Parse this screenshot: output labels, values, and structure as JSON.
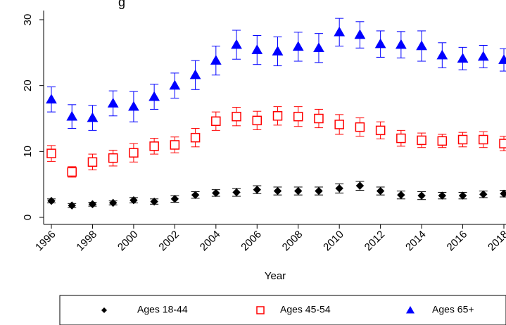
{
  "chart_data": {
    "type": "scatter",
    "title_fragment": "g",
    "xlabel": "Year",
    "ylabel": "",
    "x": [
      1996,
      1997,
      1998,
      1999,
      2000,
      2001,
      2002,
      2003,
      2004,
      2005,
      2006,
      2007,
      2008,
      2009,
      2010,
      2011,
      2012,
      2013,
      2014,
      2015,
      2016,
      2017,
      2018
    ],
    "xticks": [
      "1996",
      "1998",
      "2000",
      "2002",
      "2004",
      "2006",
      "2008",
      "2010",
      "2012",
      "2014",
      "2016",
      "2018"
    ],
    "yticks": [
      "0",
      "10",
      "20",
      "30"
    ],
    "xlim": [
      1995.5,
      2018.2
    ],
    "ylim": [
      -1,
      31
    ],
    "grid": false,
    "legend_position": "bottom",
    "series": [
      {
        "name": "Ages 18-44",
        "marker": "diamond",
        "color": "#000000",
        "values": [
          2.5,
          1.8,
          2.0,
          2.2,
          2.6,
          2.4,
          2.8,
          3.4,
          3.7,
          3.8,
          4.2,
          4.0,
          4.0,
          4.0,
          4.4,
          4.8,
          4.0,
          3.4,
          3.3,
          3.3,
          3.3,
          3.5,
          3.6
        ],
        "err": [
          0.3,
          0.3,
          0.3,
          0.3,
          0.4,
          0.4,
          0.5,
          0.5,
          0.5,
          0.6,
          0.6,
          0.6,
          0.6,
          0.6,
          0.7,
          0.7,
          0.6,
          0.6,
          0.6,
          0.5,
          0.5,
          0.5,
          0.5
        ]
      },
      {
        "name": "Ages 45-54",
        "marker": "square",
        "color": "#ff0000",
        "values": [
          9.7,
          6.9,
          8.4,
          9.0,
          9.8,
          10.8,
          11.0,
          12.1,
          14.6,
          15.3,
          14.7,
          15.4,
          15.3,
          15.0,
          14.1,
          13.7,
          13.2,
          12.0,
          11.7,
          11.6,
          11.8,
          11.8,
          11.2
        ],
        "err": [
          1.2,
          0.8,
          1.2,
          1.2,
          1.4,
          1.2,
          1.2,
          1.4,
          1.4,
          1.4,
          1.4,
          1.4,
          1.5,
          1.4,
          1.5,
          1.4,
          1.3,
          1.2,
          1.1,
          1.0,
          1.1,
          1.2,
          1.1
        ]
      },
      {
        "name": "Ages 65+",
        "marker": "triangle",
        "color": "#0000ff",
        "values": [
          17.9,
          15.3,
          15.1,
          17.3,
          16.8,
          18.3,
          20.0,
          21.6,
          23.8,
          26.2,
          25.4,
          25.2,
          25.9,
          25.7,
          28.1,
          27.7,
          26.3,
          26.2,
          26.0,
          24.6,
          24.1,
          24.4,
          23.9
        ],
        "err": [
          1.9,
          1.8,
          1.9,
          1.9,
          2.3,
          1.9,
          1.9,
          2.2,
          2.2,
          2.2,
          2.2,
          2.2,
          2.2,
          2.2,
          2.1,
          2.0,
          2.0,
          2.0,
          2.3,
          1.9,
          1.7,
          1.7,
          1.7
        ]
      }
    ]
  }
}
